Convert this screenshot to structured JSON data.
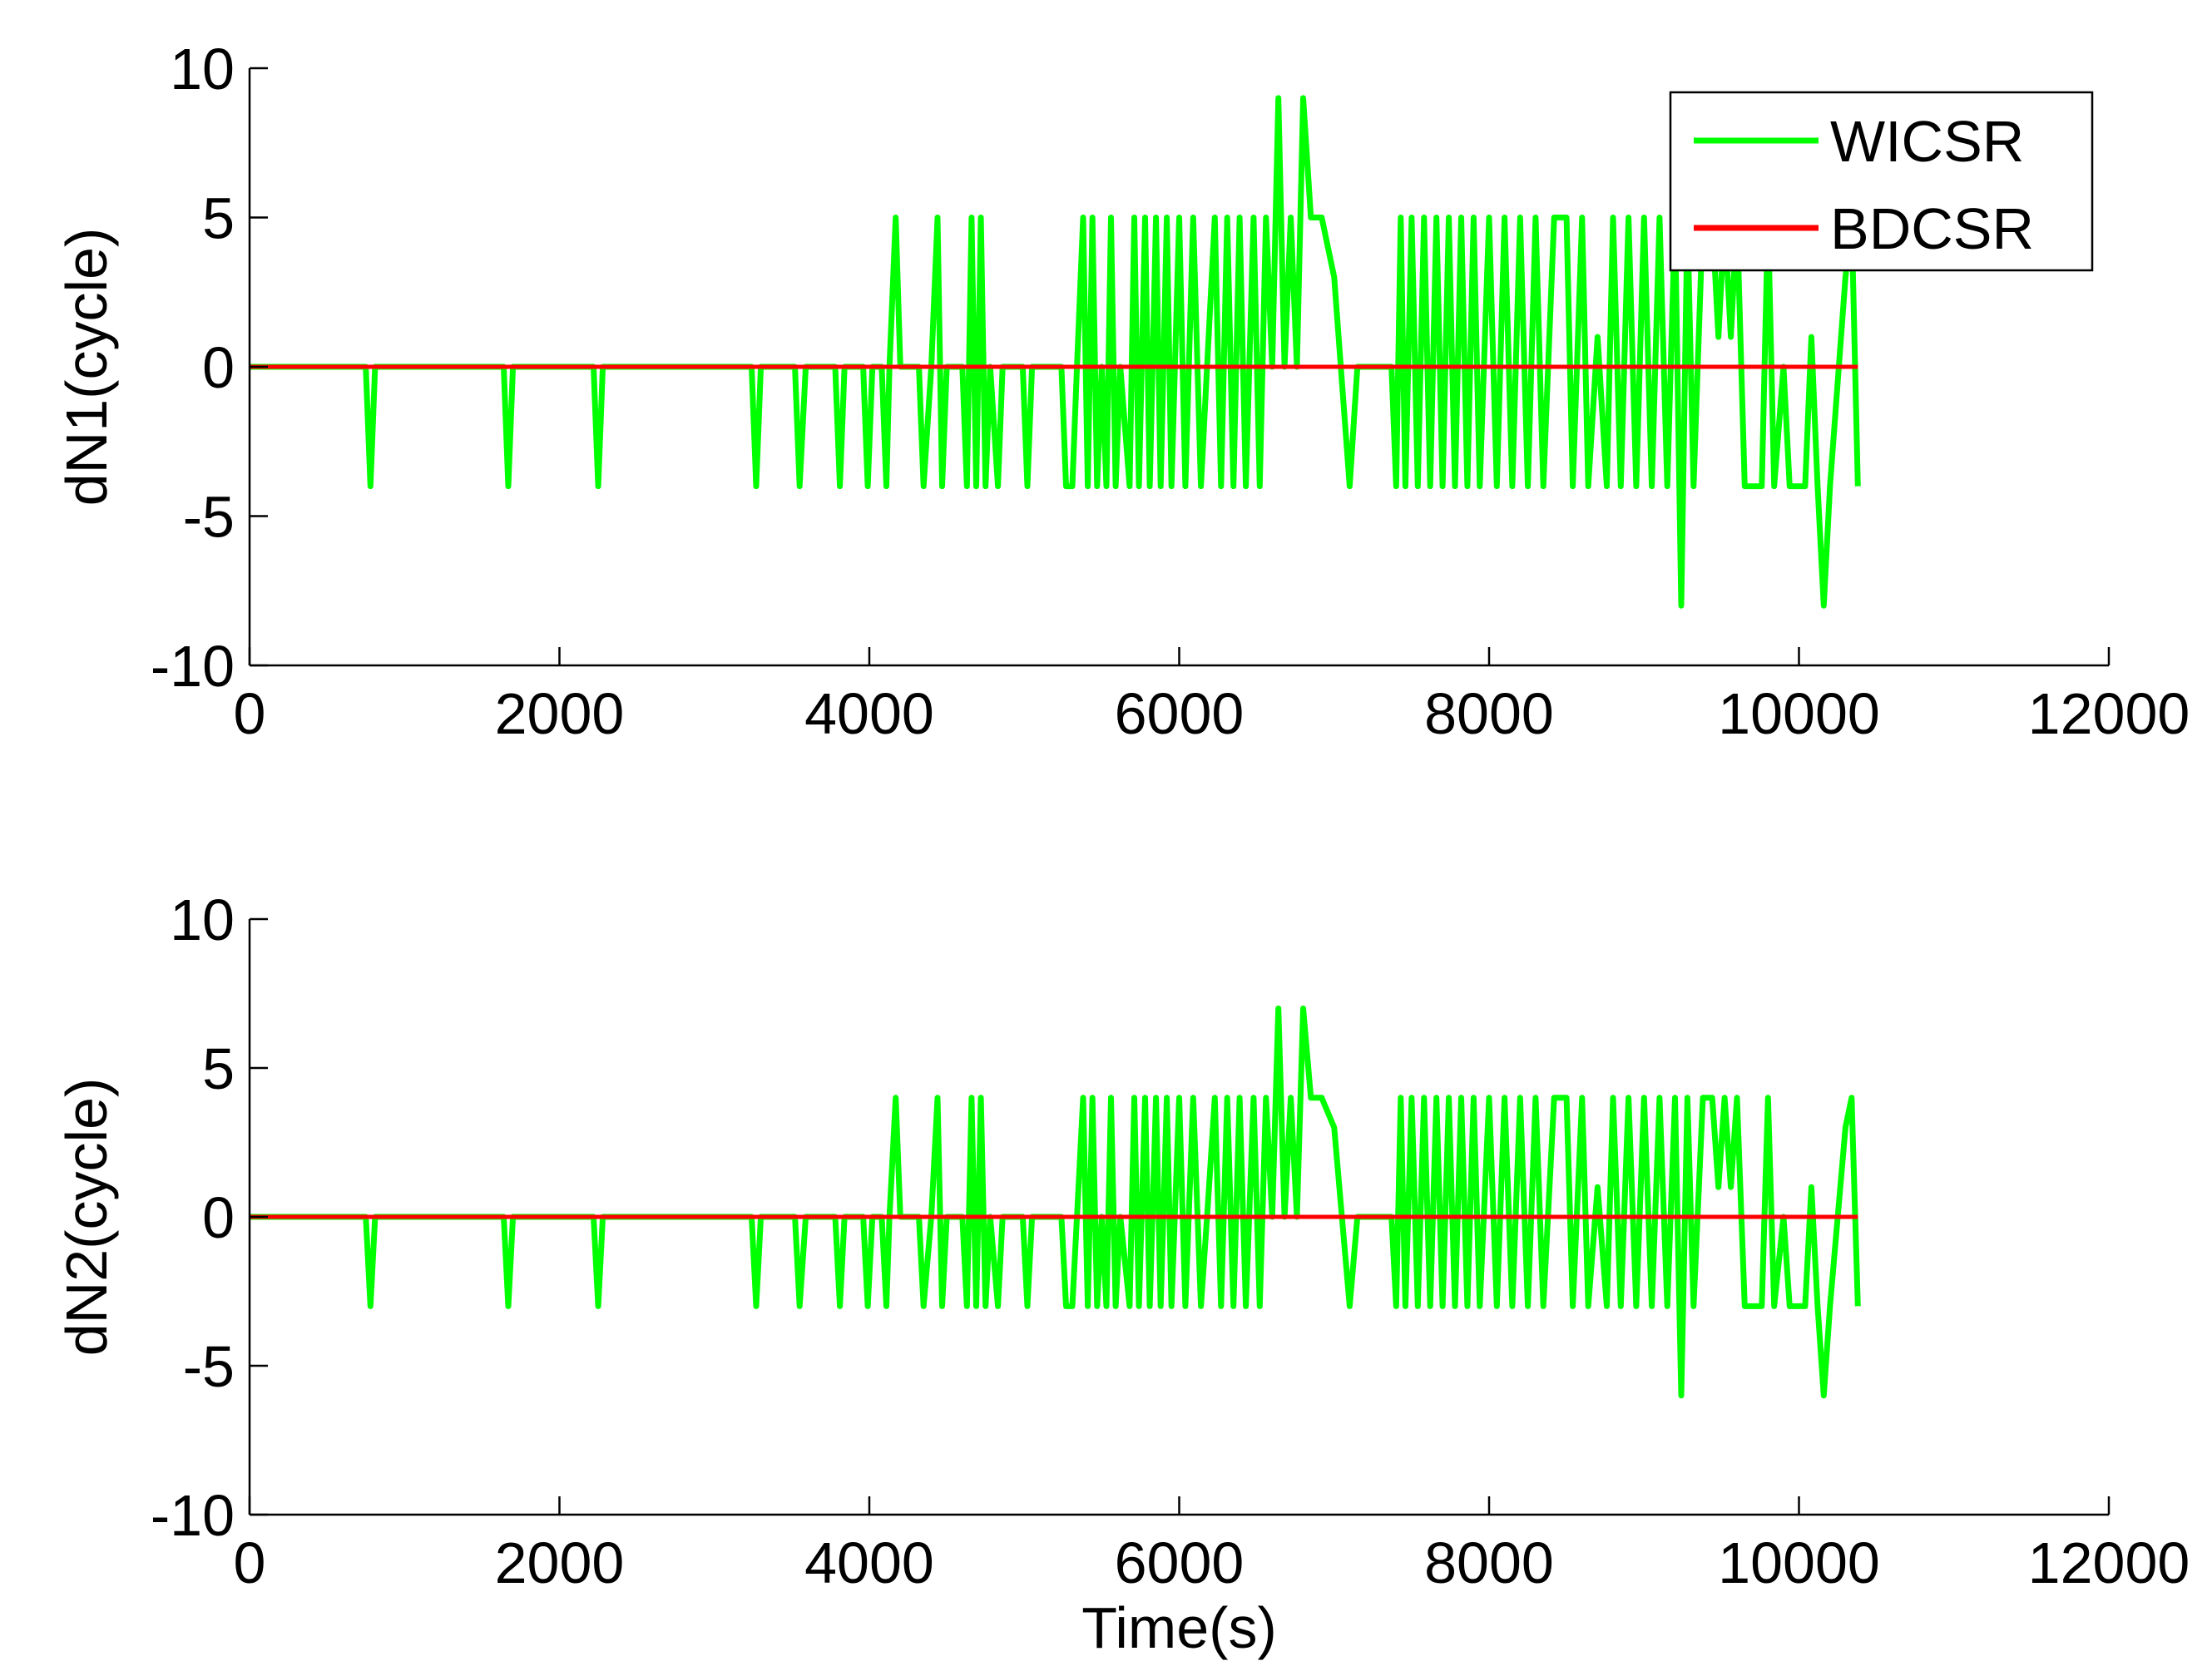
{
  "chart_data": [
    {
      "type": "line",
      "ylabel": "dN1(cycle)",
      "legend": "upper right",
      "xlim": [
        0,
        12000
      ],
      "ylim": [
        -10,
        10
      ],
      "xticks": [
        0,
        2000,
        4000,
        6000,
        8000,
        10000,
        12000
      ],
      "yticks": [
        -10,
        -5,
        0,
        5,
        10
      ],
      "series": [
        {
          "name": "WICSR",
          "color": "#00ff00",
          "x": [
            0,
            750,
            780,
            810,
            1640,
            1670,
            1700,
            2220,
            2250,
            2280,
            3240,
            3270,
            3300,
            3520,
            3550,
            3590,
            3780,
            3810,
            3840,
            3960,
            3990,
            4020,
            4080,
            4110,
            4130,
            4170,
            4200,
            4320,
            4350,
            4400,
            4440,
            4470,
            4500,
            4600,
            4630,
            4660,
            4690,
            4720,
            4750,
            4780,
            4830,
            4860,
            4990,
            5020,
            5050,
            5240,
            5270,
            5310,
            5340,
            5380,
            5410,
            5440,
            5470,
            5500,
            5530,
            5560,
            5590,
            5620,
            5680,
            5710,
            5740,
            5780,
            5810,
            5850,
            5880,
            5920,
            5950,
            6000,
            6040,
            6090,
            6140,
            6180,
            6230,
            6270,
            6310,
            6350,
            6390,
            6430,
            6480,
            6520,
            6560,
            6600,
            6640,
            6680,
            6720,
            6760,
            6800,
            6850,
            6920,
            7000,
            7100,
            7150,
            7370,
            7400,
            7430,
            7460,
            7500,
            7540,
            7580,
            7620,
            7660,
            7700,
            7740,
            7780,
            7820,
            7860,
            7900,
            7940,
            8000,
            8050,
            8100,
            8150,
            8200,
            8250,
            8300,
            8350,
            8420,
            8500,
            8540,
            8600,
            8640,
            8700,
            8760,
            8800,
            8850,
            8900,
            8950,
            9000,
            9050,
            9100,
            9150,
            9200,
            9240,
            9280,
            9320,
            9380,
            9440,
            9480,
            9520,
            9560,
            9600,
            9650,
            9760,
            9800,
            9840,
            9900,
            9940,
            10040,
            10080,
            10120,
            10160,
            10200,
            10300,
            10340,
            10380
          ],
          "values": [
            0,
            0,
            -4,
            0,
            0,
            -4,
            0,
            0,
            -4,
            0,
            0,
            -4,
            0,
            0,
            -4,
            0,
            0,
            -4,
            0,
            0,
            -4,
            0,
            0,
            -4,
            0,
            5,
            0,
            0,
            -4,
            0,
            5,
            -4,
            0,
            0,
            -4,
            5,
            -4,
            5,
            -4,
            0,
            -4,
            0,
            0,
            -4,
            0,
            0,
            -4,
            -4,
            0,
            5,
            -4,
            5,
            -4,
            0,
            -4,
            5,
            -4,
            0,
            -4,
            5,
            -4,
            5,
            -4,
            5,
            -4,
            5,
            -4,
            5,
            -4,
            5,
            -4,
            0,
            5,
            -4,
            5,
            -4,
            5,
            -4,
            5,
            -4,
            5,
            0,
            9,
            0,
            5,
            0,
            9,
            5,
            5,
            3,
            -4,
            0,
            0,
            -4,
            5,
            -4,
            5,
            -4,
            5,
            -4,
            5,
            -4,
            5,
            -4,
            5,
            -4,
            5,
            -4,
            5,
            -4,
            5,
            -4,
            5,
            -4,
            5,
            -4,
            5,
            5,
            -4,
            5,
            -4,
            1,
            -4,
            5,
            -4,
            5,
            -4,
            5,
            -4,
            5,
            -4,
            5,
            -8,
            5,
            -4,
            5,
            5,
            1,
            5,
            1,
            5,
            -4,
            -4,
            5,
            -4,
            0,
            -4,
            -4,
            1,
            -4,
            -8,
            -4,
            3,
            5,
            -4
          ]
        },
        {
          "name": "BDCSR",
          "color": "#ff0000",
          "x": [
            0,
            10380
          ],
          "values": [
            0,
            0
          ]
        }
      ]
    },
    {
      "type": "line",
      "ylabel": "dN2(cycle)",
      "xlabel": "Time(s)",
      "xlim": [
        0,
        12000
      ],
      "ylim": [
        -10,
        10
      ],
      "xticks": [
        0,
        2000,
        4000,
        6000,
        8000,
        10000,
        12000
      ],
      "yticks": [
        -10,
        -5,
        0,
        5,
        10
      ],
      "series": [
        {
          "color": "#00ff00",
          "x": [
            0,
            750,
            780,
            810,
            1640,
            1670,
            1700,
            2220,
            2250,
            2280,
            3240,
            3270,
            3300,
            3520,
            3550,
            3590,
            3780,
            3810,
            3840,
            3960,
            3990,
            4020,
            4080,
            4110,
            4130,
            4170,
            4200,
            4320,
            4350,
            4400,
            4440,
            4470,
            4500,
            4600,
            4630,
            4660,
            4690,
            4720,
            4750,
            4780,
            4830,
            4860,
            4990,
            5020,
            5050,
            5240,
            5270,
            5310,
            5340,
            5380,
            5410,
            5440,
            5470,
            5500,
            5530,
            5560,
            5590,
            5620,
            5680,
            5710,
            5740,
            5780,
            5810,
            5850,
            5880,
            5920,
            5950,
            6000,
            6040,
            6090,
            6140,
            6180,
            6230,
            6270,
            6310,
            6350,
            6390,
            6430,
            6480,
            6520,
            6560,
            6600,
            6640,
            6680,
            6720,
            6760,
            6800,
            6850,
            6920,
            7000,
            7100,
            7150,
            7370,
            7400,
            7430,
            7460,
            7500,
            7540,
            7580,
            7620,
            7660,
            7700,
            7740,
            7780,
            7820,
            7860,
            7900,
            7940,
            8000,
            8050,
            8100,
            8150,
            8200,
            8250,
            8300,
            8350,
            8420,
            8500,
            8540,
            8600,
            8640,
            8700,
            8760,
            8800,
            8850,
            8900,
            8950,
            9000,
            9050,
            9100,
            9150,
            9200,
            9240,
            9280,
            9320,
            9380,
            9440,
            9480,
            9520,
            9560,
            9600,
            9650,
            9760,
            9800,
            9840,
            9900,
            9940,
            10040,
            10080,
            10120,
            10160,
            10200,
            10300,
            10340,
            10380
          ],
          "values": [
            0,
            0,
            -3,
            0,
            0,
            -3,
            0,
            0,
            -3,
            0,
            0,
            -3,
            0,
            0,
            -3,
            0,
            0,
            -3,
            0,
            0,
            -3,
            0,
            0,
            -3,
            0,
            4,
            0,
            0,
            -3,
            0,
            4,
            -3,
            0,
            0,
            -3,
            4,
            -3,
            4,
            -3,
            0,
            -3,
            0,
            0,
            -3,
            0,
            0,
            -3,
            -3,
            0,
            4,
            -3,
            4,
            -3,
            0,
            -3,
            4,
            -3,
            0,
            -3,
            4,
            -3,
            4,
            -3,
            4,
            -3,
            4,
            -3,
            4,
            -3,
            4,
            -3,
            0,
            4,
            -3,
            4,
            -3,
            4,
            -3,
            4,
            -3,
            4,
            0,
            7,
            0,
            4,
            0,
            7,
            4,
            4,
            3,
            -3,
            0,
            0,
            -3,
            4,
            -3,
            4,
            -3,
            4,
            -3,
            4,
            -3,
            4,
            -3,
            4,
            -3,
            4,
            -3,
            4,
            -3,
            4,
            -3,
            4,
            -3,
            4,
            -3,
            4,
            4,
            -3,
            4,
            -3,
            1,
            -3,
            4,
            -3,
            4,
            -3,
            4,
            -3,
            4,
            -3,
            4,
            -6,
            4,
            -3,
            4,
            4,
            1,
            4,
            1,
            4,
            -3,
            -3,
            4,
            -3,
            0,
            -3,
            -3,
            1,
            -3,
            -6,
            -3,
            3,
            4,
            -3
          ]
        },
        {
          "color": "#ff0000",
          "x": [
            0,
            10380
          ],
          "values": [
            0,
            0
          ]
        }
      ]
    }
  ]
}
